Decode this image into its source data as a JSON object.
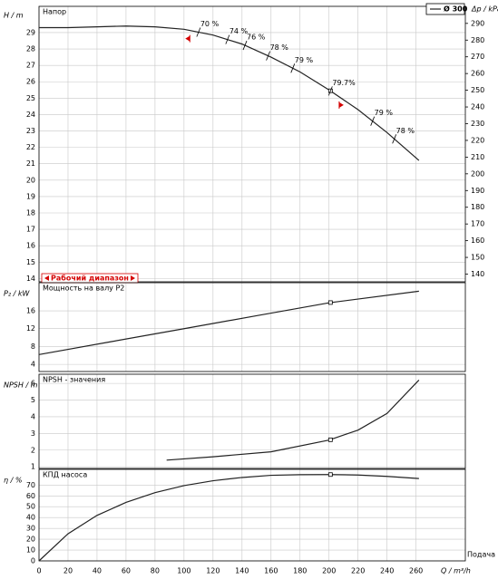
{
  "chart_data": [
    {
      "type": "line",
      "ylabel": "H / m",
      "title": "Напор",
      "y2label": "Δp / kPa",
      "x": [
        0,
        20,
        40,
        60,
        80,
        100,
        120,
        140,
        160,
        180,
        200,
        220,
        240,
        262
      ],
      "series": [
        {
          "name": "Ø 300",
          "color": "#222222",
          "values": [
            29.3,
            29.3,
            29.35,
            29.4,
            29.35,
            29.2,
            28.85,
            28.3,
            27.5,
            26.6,
            25.5,
            24.3,
            22.9,
            21.2
          ]
        }
      ],
      "marker": {
        "x": 201,
        "y": 25.45
      },
      "ylim": [
        13.8,
        30.6
      ],
      "yticks": [
        14,
        15,
        16,
        17,
        18,
        19,
        20,
        21,
        22,
        23,
        24,
        25,
        26,
        27,
        28,
        29
      ],
      "y2lim": [
        135.4,
        300.2
      ],
      "y2ticks": [
        140,
        150,
        160,
        170,
        180,
        190,
        200,
        210,
        220,
        230,
        240,
        250,
        260,
        270,
        280,
        290
      ],
      "annotations": [
        {
          "x": 110,
          "label": "70 %"
        },
        {
          "x": 130,
          "label": "74 %"
        },
        {
          "x": 142,
          "label": "76 %"
        },
        {
          "x": 158,
          "label": "78 %"
        },
        {
          "x": 175,
          "label": "79 %"
        },
        {
          "x": 201,
          "label": "79.7%"
        },
        {
          "x": 230,
          "label": "79 %"
        },
        {
          "x": 245,
          "label": "78 %"
        }
      ],
      "working_range": {
        "label": "Рабочий диапазон",
        "xlim": [
          104,
          207
        ]
      }
    },
    {
      "type": "line",
      "ylabel": "P₂ / kW",
      "title": "Мощность на валу P2",
      "x": [
        0,
        50,
        100,
        150,
        200,
        262
      ],
      "series": [
        {
          "color": "#222222",
          "values": [
            6.2,
            9.1,
            12.0,
            14.9,
            17.8,
            20.4
          ]
        }
      ],
      "marker": {
        "x": 201,
        "y": 17.85
      },
      "ylim": [
        2.4,
        22.3
      ],
      "yticks": [
        4,
        8,
        12,
        16
      ]
    },
    {
      "type": "line",
      "ylabel": "NPSH / m",
      "title": "NPSH - значения",
      "x": [
        88,
        120,
        160,
        200,
        220,
        240,
        262
      ],
      "series": [
        {
          "color": "#222222",
          "values": [
            1.4,
            1.6,
            1.9,
            2.6,
            3.2,
            4.2,
            6.2
          ]
        }
      ],
      "marker": {
        "x": 201,
        "y": 2.62
      },
      "ylim": [
        0.9,
        6.55
      ],
      "yticks": [
        1,
        2,
        3,
        4,
        5,
        6
      ]
    },
    {
      "type": "line",
      "ylabel": "η / %",
      "title": "КПД насоса",
      "xlabel": "Q / m³/h",
      "xcaption": "Подача",
      "x": [
        0,
        20,
        40,
        60,
        80,
        100,
        120,
        140,
        160,
        180,
        200,
        220,
        240,
        262
      ],
      "series": [
        {
          "color": "#222222",
          "values": [
            0,
            25,
            42,
            54,
            63,
            69.5,
            74,
            77,
            79,
            79.6,
            79.7,
            79.3,
            78,
            76
          ]
        }
      ],
      "marker": {
        "x": 201,
        "y": 79.7
      },
      "ylim": [
        0,
        84.5
      ],
      "yticks": [
        0,
        10,
        20,
        30,
        40,
        50,
        60,
        70
      ],
      "xlim": [
        0,
        294
      ],
      "xticks": [
        0,
        20,
        40,
        60,
        80,
        100,
        120,
        140,
        160,
        180,
        200,
        220,
        240,
        260
      ]
    }
  ]
}
